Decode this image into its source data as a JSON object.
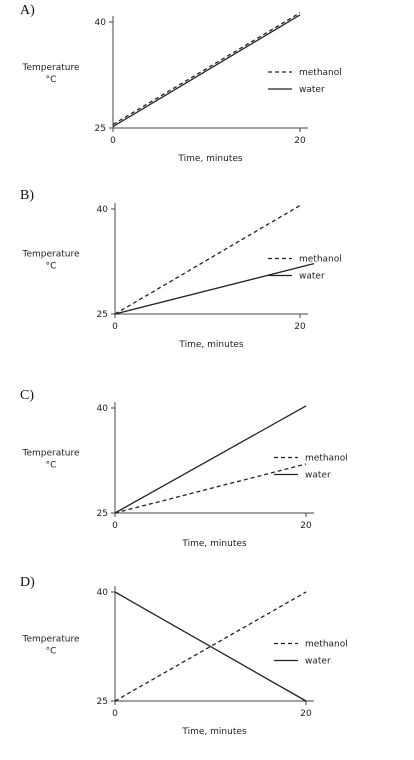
{
  "charts": [
    {
      "letter": "A)",
      "chart_data": {
        "type": "line",
        "xlabel": "Time, minutes",
        "ylabel": "Temperature",
        "ylabel_unit": "°C",
        "xlim": [
          0,
          20
        ],
        "ylim": [
          25,
          40
        ],
        "x_ticks": [
          "0",
          "20"
        ],
        "y_ticks": [
          "25",
          "40"
        ],
        "legend_position": "right",
        "series": [
          {
            "name": "methanol",
            "style": "dashed",
            "x": [
              0,
              20
            ],
            "y": [
              25.5,
              41.3
            ]
          },
          {
            "name": "water",
            "style": "solid",
            "x": [
              0,
              20
            ],
            "y": [
              25.2,
              41.0
            ]
          }
        ]
      }
    },
    {
      "letter": "B)",
      "chart_data": {
        "type": "line",
        "xlabel": "Time, minutes",
        "ylabel": "Temperature",
        "ylabel_unit": "°C",
        "xlim": [
          0,
          20
        ],
        "ylim": [
          25,
          40
        ],
        "x_ticks": [
          "0",
          "20"
        ],
        "y_ticks": [
          "25",
          "40"
        ],
        "legend_position": "right",
        "series": [
          {
            "name": "methanol",
            "style": "dashed",
            "x": [
              0,
              20
            ],
            "y": [
              25,
              40.5
            ]
          },
          {
            "name": "water",
            "style": "solid",
            "x": [
              0,
              21.5
            ],
            "y": [
              25,
              32.2
            ]
          }
        ]
      }
    },
    {
      "letter": "C)",
      "chart_data": {
        "type": "line",
        "xlabel": "Time, minutes",
        "ylabel": "Temperature",
        "ylabel_unit": "°C",
        "xlim": [
          0,
          20
        ],
        "ylim": [
          25,
          40
        ],
        "x_ticks": [
          "0",
          "20"
        ],
        "y_ticks": [
          "25",
          "40"
        ],
        "legend_position": "right",
        "series": [
          {
            "name": "methanol",
            "style": "dashed",
            "x": [
              0,
              20
            ],
            "y": [
              25,
              32.0
            ]
          },
          {
            "name": "water",
            "style": "solid",
            "x": [
              0,
              20
            ],
            "y": [
              25,
              40.3
            ]
          }
        ]
      }
    },
    {
      "letter": "D)",
      "chart_data": {
        "type": "line",
        "xlabel": "Time, minutes",
        "ylabel": "Temperature",
        "ylabel_unit": "°C",
        "xlim": [
          0,
          20
        ],
        "ylim": [
          25,
          40
        ],
        "x_ticks": [
          "0",
          "20"
        ],
        "y_ticks": [
          "25",
          "40"
        ],
        "legend_position": "right",
        "series": [
          {
            "name": "methanol",
            "style": "dashed",
            "x": [
              0,
              20
            ],
            "y": [
              25,
              40
            ]
          },
          {
            "name": "water",
            "style": "solid",
            "x": [
              0,
              20
            ],
            "y": [
              40,
              25
            ]
          }
        ]
      }
    }
  ]
}
